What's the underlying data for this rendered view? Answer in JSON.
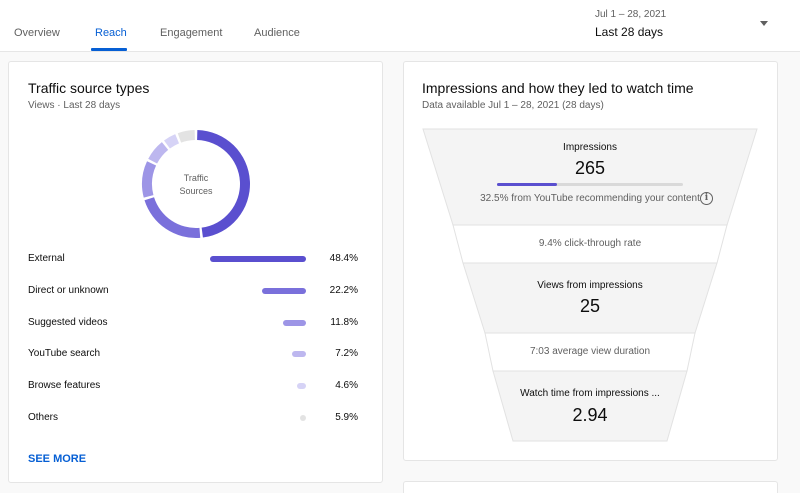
{
  "header": {
    "tabs": [
      {
        "label": "Overview",
        "active": false
      },
      {
        "label": "Reach",
        "active": true
      },
      {
        "label": "Engagement",
        "active": false
      },
      {
        "label": "Audience",
        "active": false
      }
    ],
    "date_range": {
      "sub": "Jul 1 – 28, 2021",
      "main": "Last 28 days"
    }
  },
  "traffic": {
    "title": "Traffic source types",
    "subtitle": "Views · Last 28 days",
    "donut_label_line1": "Traffic",
    "donut_label_line2": "Sources",
    "rows": [
      {
        "label": "External",
        "percent": "48.4%",
        "value": 48.4,
        "color": "#5a4fcf"
      },
      {
        "label": "Direct or unknown",
        "percent": "22.2%",
        "value": 22.2,
        "color": "#7a70db"
      },
      {
        "label": "Suggested videos",
        "percent": "11.8%",
        "value": 11.8,
        "color": "#9d95e6"
      },
      {
        "label": "YouTube search",
        "percent": "7.2%",
        "value": 7.2,
        "color": "#bdb7ef"
      },
      {
        "label": "Browse features",
        "percent": "4.6%",
        "value": 4.6,
        "color": "#d6d3f6"
      },
      {
        "label": "Others",
        "percent": "5.9%",
        "value": 5.9,
        "color": "#e3e3e3"
      }
    ],
    "see_more": "SEE MORE"
  },
  "impressions": {
    "title": "Impressions and how they led to watch time",
    "subtitle": "Data available Jul 1 – 28, 2021 (28 days)",
    "impressions_label": "Impressions",
    "impressions_value": "265",
    "recommend_fraction": 0.325,
    "recommend_text": "32.5% from YouTube recommending your content",
    "ctr_text": "9.4% click-through rate",
    "views_label": "Views from impressions",
    "views_value": "25",
    "avg_duration_text": "7:03 average view duration",
    "watch_label": "Watch time from impressions ...",
    "watch_value": "2.94"
  },
  "colors": {
    "accent": "#065fd4",
    "series": "#5a4fcf"
  },
  "icons": [
    "info-icon",
    "dropdown-arrow-icon"
  ]
}
